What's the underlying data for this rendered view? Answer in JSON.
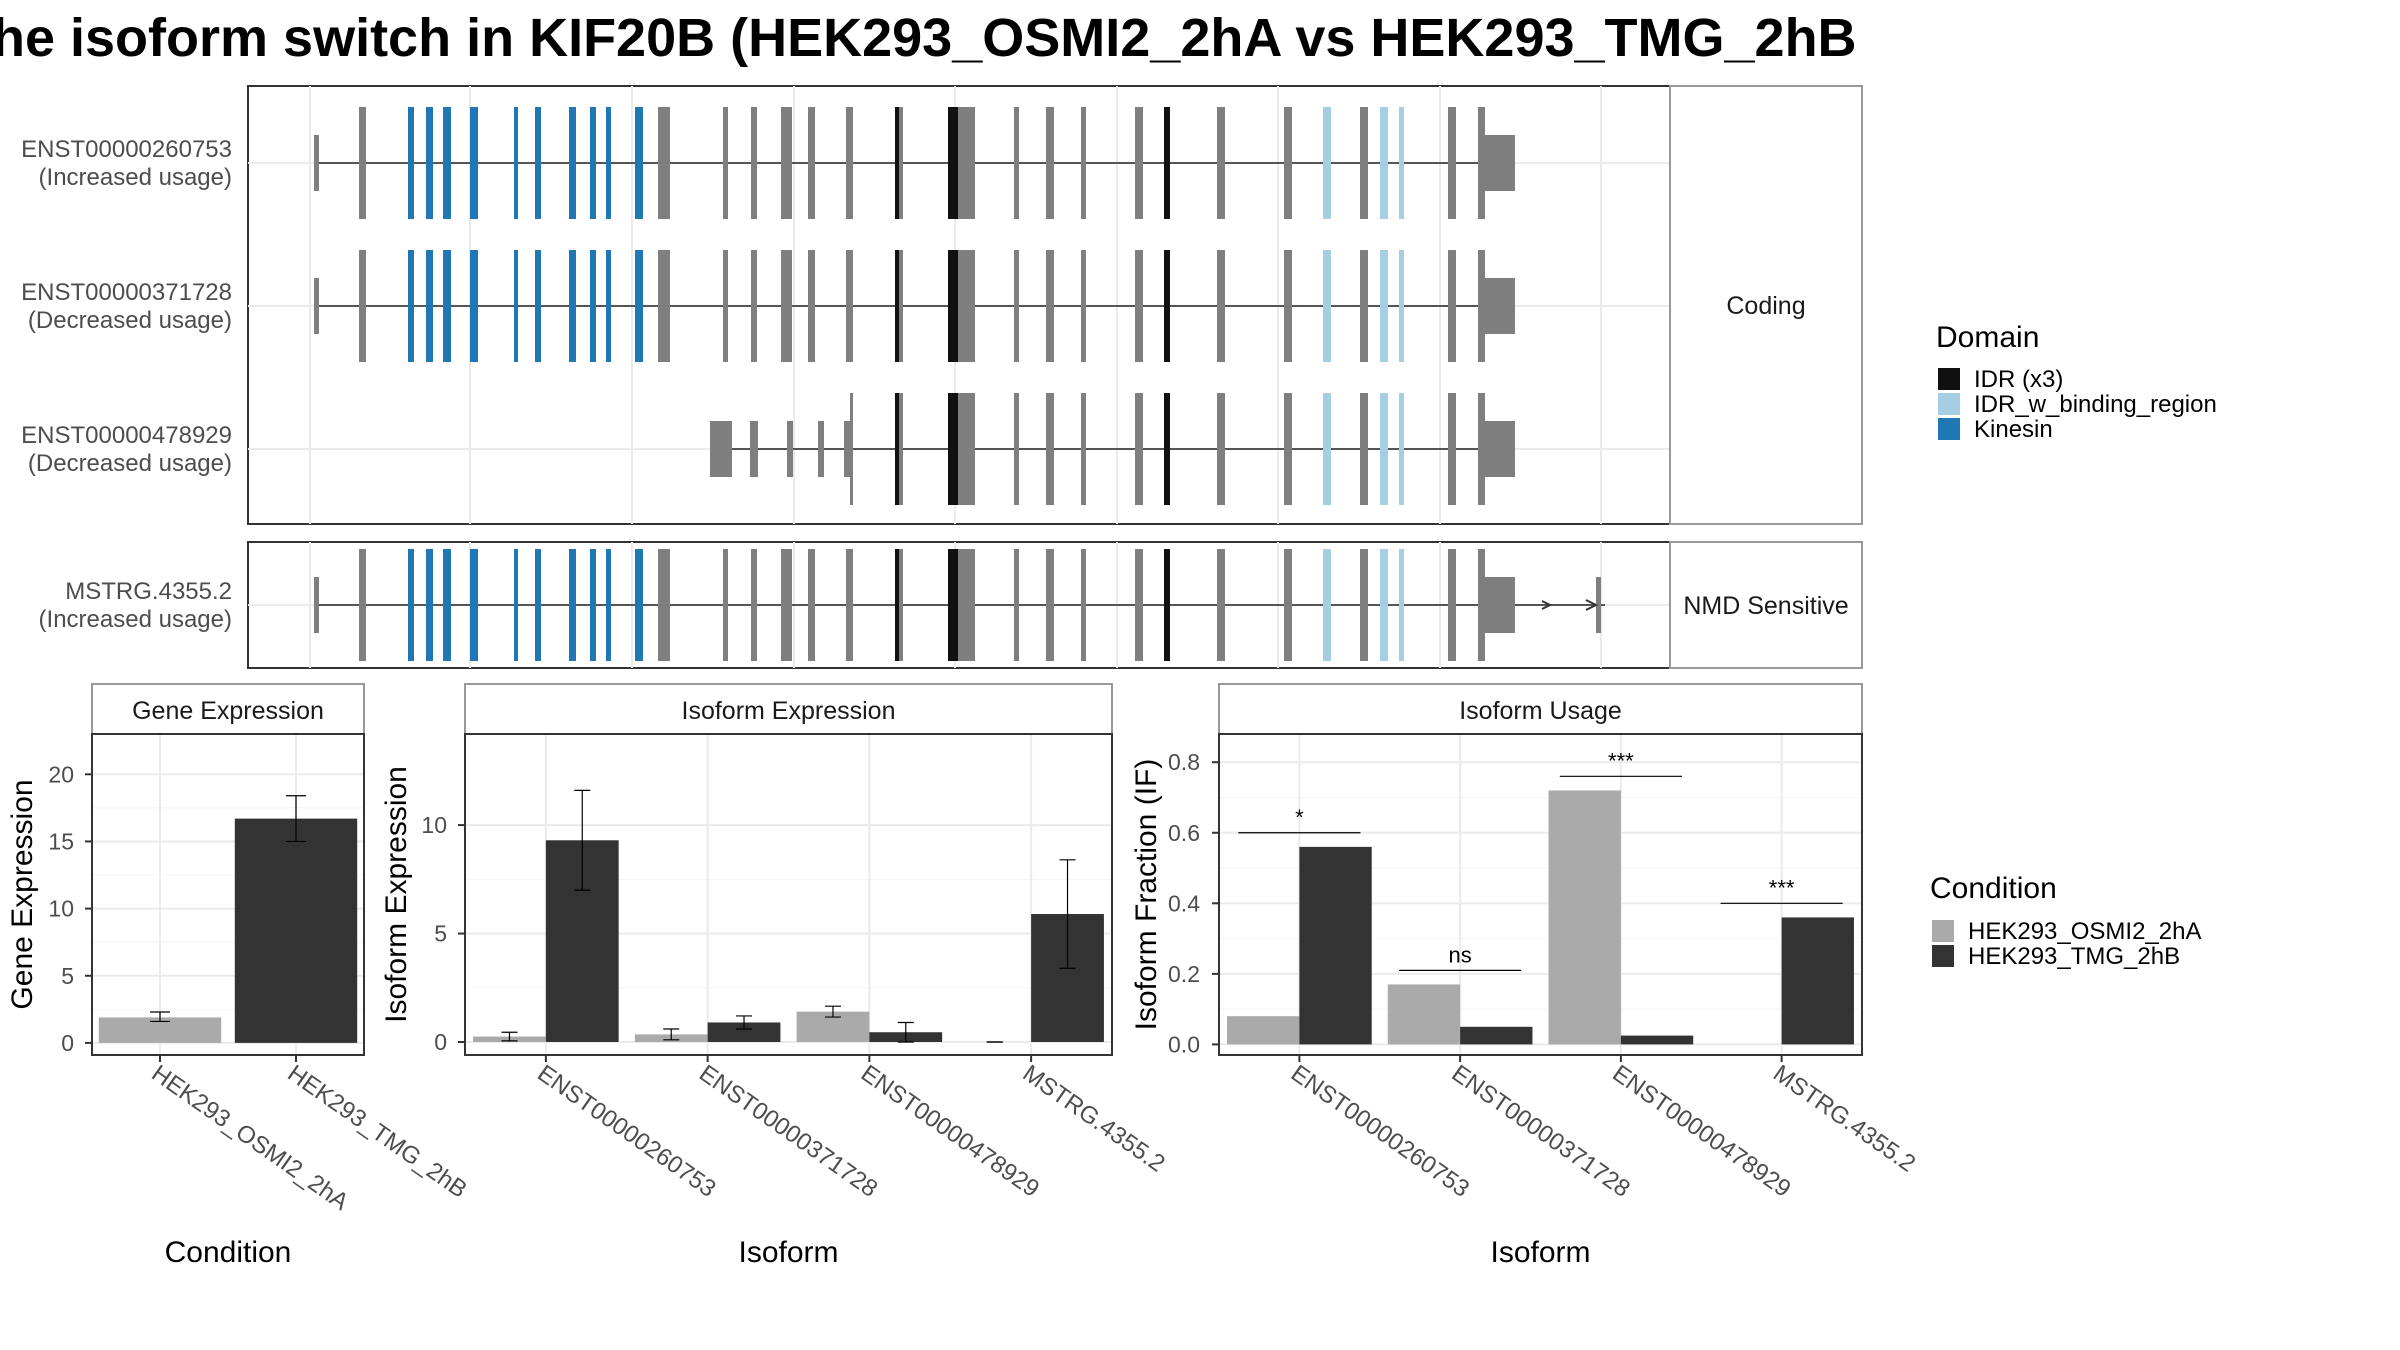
{
  "title": "he isoform switch in KIF20B (HEK293_OSMI2_2hA vs HEK293_TMG_2hB",
  "colors": {
    "exon": "#7f7f7f",
    "idr": "#111111",
    "idr_binding": "#a6cee3",
    "kinesin": "#1f78b4",
    "cond_a": "#aaaaaa",
    "cond_b": "#333333"
  },
  "transcripts": {
    "panels": [
      {
        "strip": "Coding",
        "tracks": [
          {
            "id": "ENST00000260753",
            "usage": "(Increased usage)",
            "start": "full"
          },
          {
            "id": "ENST00000371728",
            "usage": "(Decreased usage)",
            "start": "full"
          },
          {
            "id": "ENST00000478929",
            "usage": "(Decreased usage)",
            "start": "partial"
          }
        ]
      },
      {
        "strip": "NMD Sensitive",
        "tracks": [
          {
            "id": "MSTRG.4355.2",
            "usage": "(Increased usage)",
            "start": "full"
          }
        ]
      }
    ]
  },
  "legend_domain": {
    "title": "Domain",
    "items": [
      {
        "label": "IDR (x3)",
        "color": "#111111"
      },
      {
        "label": "IDR_w_binding_region",
        "color": "#a6cee3"
      },
      {
        "label": "Kinesin",
        "color": "#1f78b4"
      }
    ]
  },
  "legend_condition": {
    "title": "Condition",
    "items": [
      {
        "label": "HEK293_OSMI2_2hA",
        "color": "#aaaaaa"
      },
      {
        "label": "HEK293_TMG_2hB",
        "color": "#333333"
      }
    ]
  },
  "chart_data": [
    {
      "type": "bar",
      "strip": "Gene Expression",
      "xlabel": "Condition",
      "ylabel": "Gene Expression",
      "categories": [
        "HEK293_OSMI2_2hA",
        "HEK293_TMG_2hB"
      ],
      "values": [
        1.9,
        16.7
      ],
      "errors": [
        [
          1.6,
          2.3
        ],
        [
          15.0,
          18.4
        ]
      ],
      "colors": [
        "#aaaaaa",
        "#333333"
      ],
      "ylim": [
        -0.9,
        23
      ],
      "yticks": [
        0,
        5,
        10,
        15,
        20
      ]
    },
    {
      "type": "bar",
      "strip": "Isoform Expression",
      "xlabel": "Isoform",
      "ylabel": "Isoform Expression",
      "categories": [
        "ENST00000260753",
        "ENST00000371728",
        "ENST00000478929",
        "MSTRG.4355.2"
      ],
      "series": [
        {
          "name": "HEK293_OSMI2_2hA",
          "values": [
            0.25,
            0.35,
            1.4,
            0.0
          ],
          "errors": [
            [
              0.05,
              0.45
            ],
            [
              0.1,
              0.6
            ],
            [
              1.15,
              1.65
            ],
            [
              0.0,
              0.0
            ]
          ]
        },
        {
          "name": "HEK293_TMG_2hB",
          "values": [
            9.3,
            0.9,
            0.45,
            5.9
          ],
          "errors": [
            [
              7.0,
              11.6
            ],
            [
              0.6,
              1.2
            ],
            [
              0.0,
              0.9
            ],
            [
              3.4,
              8.4
            ]
          ]
        }
      ],
      "ylim": [
        -0.6,
        14.2
      ],
      "yticks": [
        0,
        5,
        10
      ]
    },
    {
      "type": "bar",
      "strip": "Isoform Usage",
      "xlabel": "Isoform",
      "ylabel": "Isoform Fraction (IF)",
      "categories": [
        "ENST00000260753",
        "ENST00000371728",
        "ENST00000478929",
        "MSTRG.4355.2"
      ],
      "series": [
        {
          "name": "HEK293_OSMI2_2hA",
          "values": [
            0.08,
            0.17,
            0.72,
            0.0
          ]
        },
        {
          "name": "HEK293_TMG_2hB",
          "values": [
            0.56,
            0.05,
            0.025,
            0.36
          ]
        }
      ],
      "significance": [
        "*",
        "ns",
        "***",
        "***"
      ],
      "ylim": [
        -0.03,
        0.88
      ],
      "yticks": [
        0.0,
        0.2,
        0.4,
        0.6,
        0.8
      ],
      "yticklabels": [
        "0.0",
        "0.2",
        "0.4",
        "0.6",
        "0.8"
      ]
    }
  ]
}
